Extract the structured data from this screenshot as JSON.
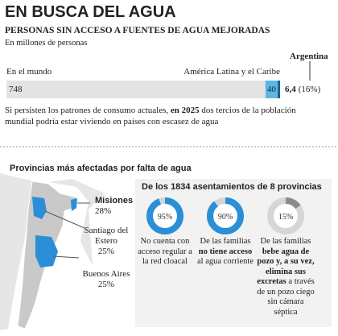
{
  "header": {
    "title": "EN BUSCA DEL AGUA",
    "subtitle": "PERSONAS SIN ACCESO A FUENTES DE AGUA MEJORADAS",
    "unit": "En millones de personas"
  },
  "bar": {
    "segments": [
      {
        "name": "En el mundo",
        "value": 748,
        "color": "#e3e3e3"
      },
      {
        "name": "América Latina y el Caribe",
        "value": 40,
        "color": "#5bb8e6"
      },
      {
        "name": "Argentina",
        "value": 6.4,
        "value_label": "6,4",
        "share_label": "(16%)",
        "color": "#1c5f94"
      }
    ]
  },
  "note": {
    "parts": [
      {
        "text": "Si persisten los patrones de consumo actuales, ",
        "bold": false
      },
      {
        "text": "en 2025",
        "bold": true
      },
      {
        "text": " dos tercios de la población mundial podría estar viviendo en países con escasez de agua",
        "bold": false
      }
    ]
  },
  "provinces": {
    "title": "Provincias más afectadas por falta de agua",
    "items": [
      {
        "name": "Misiones",
        "value": 28,
        "label": "28%"
      },
      {
        "name": "Santiago del Estero",
        "value": 25,
        "label": "25%"
      },
      {
        "name": "Buenos Aires",
        "value": 25,
        "label": "25%"
      }
    ]
  },
  "settlements": {
    "title": "De los 1834 asentamientos de 8 provincias",
    "items": [
      {
        "value": 95,
        "label": "95%",
        "color": "#2a8fd6",
        "parts": [
          {
            "text": "No cuenta con acceso regular a la red cloacal",
            "bold": false
          }
        ]
      },
      {
        "value": 90,
        "label": "90%",
        "color": "#2a8fd6",
        "parts": [
          {
            "text": "De las familias ",
            "bold": false
          },
          {
            "text": "no tiene acceso",
            "bold": true
          },
          {
            "text": " al agua corriente",
            "bold": false
          }
        ]
      },
      {
        "value": 15,
        "label": "15%",
        "color": "#8a8a8a",
        "parts": [
          {
            "text": "De las familias ",
            "bold": false
          },
          {
            "text": "bebe agua de pozo y, a su vez, elimina sus excretas",
            "bold": true
          },
          {
            "text": " a través de un pozo ciego sin cámara séptica",
            "bold": false
          }
        ]
      }
    ]
  }
}
